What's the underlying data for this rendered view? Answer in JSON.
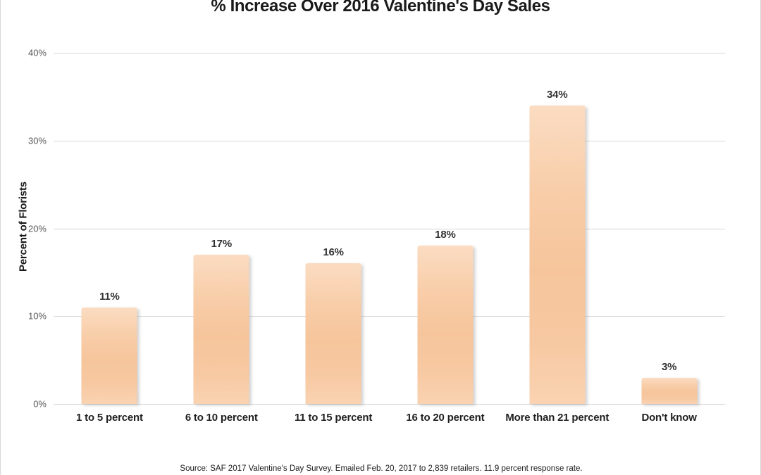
{
  "chart_data": {
    "type": "bar",
    "title": "% Increase Over 2016 Valentine's Day Sales",
    "categories": [
      "1 to 5 percent",
      "6 to 10 percent",
      "11 to 15 percent",
      "16 to 20 percent",
      "More than 21 percent",
      "Don't know"
    ],
    "values": [
      11,
      17,
      16,
      18,
      34,
      3
    ],
    "data_labels": [
      "11%",
      "17%",
      "16%",
      "18%",
      "34%",
      "3%"
    ],
    "xlabel": "",
    "ylabel": "Percent of Florists",
    "ylim": [
      0,
      40
    ],
    "ytick_interval": 10,
    "yticks": [
      "0%",
      "10%",
      "20%",
      "30%",
      "40%"
    ],
    "grid": true,
    "legend_position": "none",
    "bar_color": "#F8CBA6",
    "bar_gradient": [
      "#FBDCC2",
      "#F6C59C",
      "#FAD3B2"
    ],
    "gridline_color": "#D6D6D6",
    "source_note": "Source: SAF 2017 Valentine's Day Survey. Emailed Feb. 20, 2017 to 2,839 retailers. 11.9 percent response rate."
  }
}
